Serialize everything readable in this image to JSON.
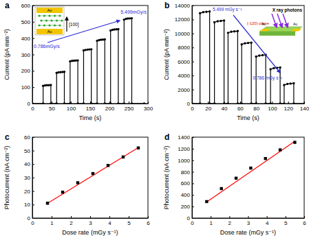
{
  "chart_data": [
    {
      "type": "line",
      "title": "a",
      "x_label": "Time (s)",
      "y_label": "Current (pA mm⁻²)",
      "xlim": [
        0,
        300
      ],
      "xticks": [
        0,
        50,
        100,
        150,
        200,
        250,
        300
      ],
      "ylim": [
        0,
        600
      ],
      "yticks": [
        0,
        100,
        200,
        300,
        400,
        500,
        600
      ],
      "annotations": [
        "0.786mGy/s",
        "5.499mGy/s",
        "[100]",
        "Au",
        "Au"
      ],
      "series": [
        {
          "color": "#000000",
          "marker": "circle",
          "line_style": "solid",
          "x": [
            0,
            28,
            28,
            33,
            38,
            43,
            48,
            48,
            63,
            63,
            68,
            73,
            78,
            83,
            83,
            98,
            98,
            103,
            108,
            113,
            118,
            118,
            133,
            133,
            138,
            143,
            148,
            153,
            153,
            168,
            168,
            173,
            178,
            183,
            188,
            188,
            203,
            203,
            208,
            213,
            218,
            223,
            223,
            238,
            238,
            243,
            248,
            253,
            258,
            258,
            290
          ],
          "values": [
            0,
            0,
            108,
            111,
            112,
            112,
            113,
            0,
            0,
            188,
            191,
            192,
            193,
            194,
            0,
            0,
            258,
            261,
            262,
            263,
            264,
            0,
            0,
            325,
            328,
            330,
            331,
            332,
            0,
            0,
            384,
            388,
            390,
            391,
            392,
            0,
            0,
            447,
            451,
            453,
            454,
            455,
            0,
            0,
            513,
            518,
            520,
            521,
            522,
            0,
            0
          ]
        }
      ]
    },
    {
      "type": "line",
      "title": "b",
      "x_label": "Time (s)",
      "y_label": "Current (pA mm⁻²)",
      "xlim": [
        0,
        140
      ],
      "xticks": [
        0,
        20,
        40,
        60,
        80,
        100,
        120,
        140
      ],
      "ylim": [
        0,
        14000
      ],
      "yticks": [
        0,
        2000,
        4000,
        6000,
        8000,
        10000,
        12000,
        14000
      ],
      "annotations": [
        "5.499 mGy s⁻¹",
        "0.786 mGy s⁻¹",
        "(-120) plane",
        "X ray photons",
        "Au",
        "Au"
      ],
      "series": [
        {
          "color": "#000000",
          "marker": "circle",
          "line_style": "solid",
          "x": [
            0,
            10,
            10,
            14,
            18,
            22,
            22,
            28,
            28,
            32,
            36,
            40,
            40,
            45,
            45,
            49,
            53,
            57,
            57,
            62,
            62,
            66,
            70,
            74,
            74,
            80,
            80,
            84,
            88,
            92,
            92,
            98,
            98,
            102,
            106,
            110,
            110,
            115,
            115,
            119,
            123,
            127,
            127,
            140
          ],
          "values": [
            0,
            0,
            12900,
            13050,
            13100,
            13150,
            0,
            0,
            11600,
            11750,
            11800,
            11850,
            0,
            0,
            10100,
            10250,
            10300,
            10350,
            0,
            0,
            8450,
            8600,
            8650,
            8700,
            0,
            0,
            6700,
            6850,
            6900,
            6950,
            0,
            0,
            4900,
            5050,
            5100,
            5150,
            0,
            0,
            2650,
            2800,
            2850,
            2900,
            0,
            0
          ]
        }
      ]
    },
    {
      "type": "scatter",
      "title": "c",
      "x_label": "Dose rate (mGy s⁻¹)",
      "y_label": "Photocurrent (nA cm⁻²)",
      "xlim": [
        0,
        6
      ],
      "xticks": [
        0,
        1,
        2,
        3,
        4,
        5,
        6
      ],
      "ylim": [
        0,
        60
      ],
      "yticks": [
        0,
        10,
        20,
        30,
        40,
        50,
        60
      ],
      "series": [
        {
          "type": "line",
          "color": "#ff0000",
          "line_style": "solid",
          "x": [
            0.786,
            5.499
          ],
          "values": [
            10.9,
            52.3
          ]
        },
        {
          "type": "scatter",
          "color": "#000000",
          "marker": "square",
          "x": [
            0.786,
            1.572,
            2.357,
            3.143,
            3.929,
            4.714,
            5.499
          ],
          "values": [
            11,
            19.2,
            26.2,
            33,
            39,
            45.3,
            52
          ]
        }
      ]
    },
    {
      "type": "scatter",
      "title": "d",
      "x_label": "Dose rate (mGy s⁻¹)",
      "y_label": "Photocurrent (nA cm⁻²)",
      "xlim": [
        0,
        6
      ],
      "xticks": [
        0,
        1,
        2,
        3,
        4,
        5,
        6
      ],
      "ylim": [
        0,
        1400
      ],
      "yticks": [
        0,
        200,
        400,
        600,
        800,
        1000,
        1200,
        1400
      ],
      "series": [
        {
          "type": "line",
          "color": "#ff0000",
          "line_style": "solid",
          "x": [
            0.786,
            5.499
          ],
          "values": [
            280,
            1330
          ]
        },
        {
          "type": "scatter",
          "color": "#000000",
          "marker": "square",
          "x": [
            0.786,
            1.572,
            2.357,
            3.143,
            3.929,
            4.714,
            5.499
          ],
          "values": [
            285,
            510,
            690,
            865,
            1030,
            1180,
            1310
          ]
        }
      ]
    }
  ]
}
